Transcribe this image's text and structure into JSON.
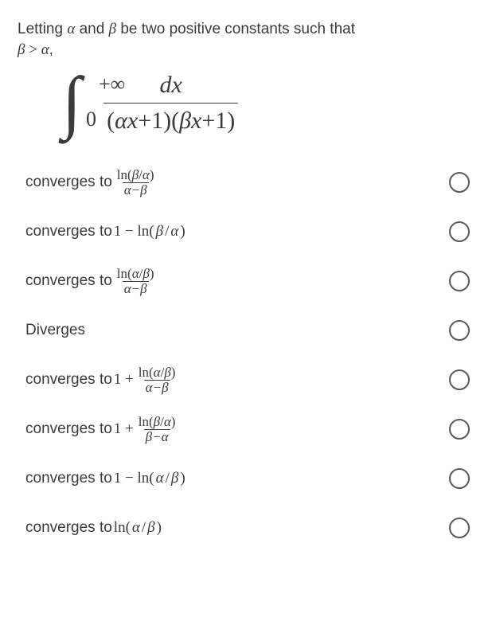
{
  "prompt": {
    "part1": "Letting ",
    "alpha": "α",
    "part2": " and ",
    "beta": "β",
    "part3": " be two positive constants such that",
    "line2a": "β",
    "gt": " > ",
    "line2b": "α",
    "comma": ","
  },
  "integral": {
    "upper": "+∞",
    "lower": "0",
    "numerator": "dx",
    "den_open": "(",
    "den_a": "α",
    "den_x1": "x",
    "den_plus1": "+1)(",
    "den_b": "β",
    "den_x2": "x",
    "den_plus2": "+1)"
  },
  "options": [
    {
      "prefix": "converges to ",
      "frac": {
        "num_parts": [
          "ln(",
          "β",
          "/",
          "α",
          ")"
        ],
        "den_parts": [
          "α",
          "−",
          "β"
        ]
      }
    },
    {
      "flat_parts": [
        "converges to ",
        "1 − ln(",
        "β",
        "/",
        "α",
        ")"
      ],
      "flat_styles": [
        "plain",
        "mrm",
        "mit",
        "mrm",
        "mit",
        "mrm"
      ]
    },
    {
      "prefix": "converges to ",
      "frac": {
        "num_parts": [
          "ln(",
          "α",
          "/",
          "β",
          ")"
        ],
        "den_parts": [
          "α",
          "−",
          "β"
        ]
      }
    },
    {
      "flat_parts": [
        "Diverges"
      ],
      "flat_styles": [
        "plain"
      ]
    },
    {
      "prefix": "converges to ",
      "lead_parts": [
        "1 + "
      ],
      "lead_styles": [
        "mrm"
      ],
      "frac": {
        "num_parts": [
          "ln(",
          "α",
          "/",
          "β",
          ")"
        ],
        "den_parts": [
          "α",
          "−",
          "β"
        ]
      }
    },
    {
      "prefix": "converges to ",
      "lead_parts": [
        "1 + "
      ],
      "lead_styles": [
        "mrm"
      ],
      "frac": {
        "num_parts": [
          "ln(",
          "β",
          "/",
          "α",
          ")"
        ],
        "den_parts": [
          "β",
          "−",
          "α"
        ]
      }
    },
    {
      "flat_parts": [
        "converges to ",
        "1 − ln(",
        "α",
        "/",
        "β",
        ")"
      ],
      "flat_styles": [
        "plain",
        "mrm",
        "mit",
        "mrm",
        "mit",
        "mrm"
      ]
    },
    {
      "flat_parts": [
        "converges to ",
        "ln(",
        "α",
        "/",
        "β",
        ")"
      ],
      "flat_styles": [
        "plain",
        "mrm",
        "mit",
        "mrm",
        "mit",
        "mrm"
      ]
    }
  ],
  "colors": {
    "text": "#3b3b3b",
    "radio_border": "#5a5a5a",
    "bg": "#ffffff"
  }
}
